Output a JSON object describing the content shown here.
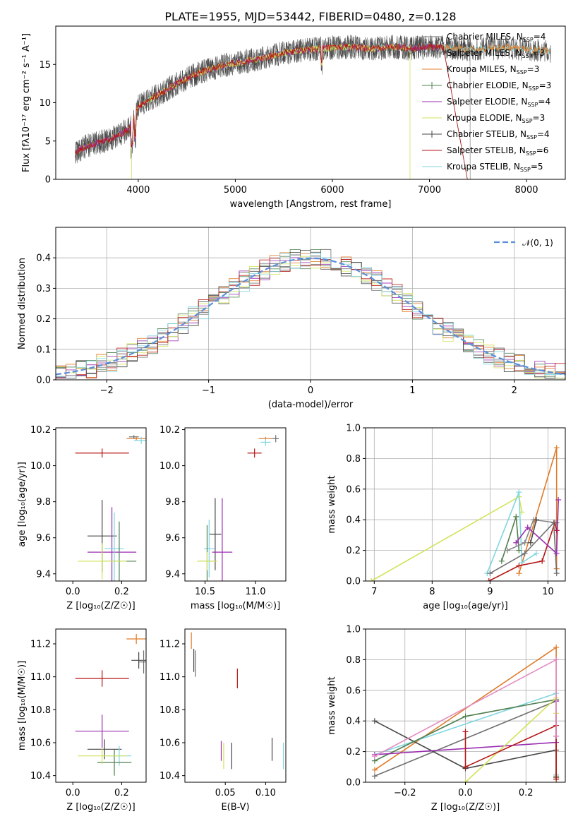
{
  "title": "PLATE=1955, MJD=53442, FIBERID=0480, z=0.128",
  "series_colors": [
    "#6f6f6f",
    "#888888",
    "#e07b28",
    "#4f7f4f",
    "#9b2fb0",
    "#d2e35a",
    "#474747",
    "#b51515",
    "#7fd6e0"
  ],
  "chart_data": [
    {
      "id": "spectrum",
      "type": "line",
      "title": "PLATE=1955, MJD=53442, FIBERID=0480, z=0.128",
      "xlabel": "wavelength [Angstrom, rest frame]",
      "ylabel": "Flux [fλ10⁻¹⁷ erg cm⁻² s⁻¹ A⁻¹]",
      "xlim": [
        3150,
        8400
      ],
      "ylim": [
        0,
        20
      ],
      "xticks": [
        "4000",
        "5000",
        "6000",
        "7000",
        "8000"
      ],
      "yticks": [
        "0",
        "5",
        "10",
        "15"
      ],
      "grid": false,
      "legend": "top-right",
      "legend_entries": [
        {
          "model": "Chabrier MILES",
          "n": "4"
        },
        {
          "model": "Salpeter MILES",
          "n": "3"
        },
        {
          "model": "Kroupa MILES",
          "n": "3"
        },
        {
          "model": "Chabrier ELODIE",
          "n": "3"
        },
        {
          "model": "Salpeter ELODIE",
          "n": "4"
        },
        {
          "model": "Kroupa ELODIE",
          "n": "3"
        },
        {
          "model": "Chabrier STELIB",
          "n": "4"
        },
        {
          "model": "Salpeter STELIB",
          "n": "6"
        },
        {
          "model": "Kroupa STELIB",
          "n": "5"
        }
      ],
      "n_label": "N",
      "n_sub": "SSP",
      "continuum": {
        "x": [
          3350,
          3500,
          3700,
          3900,
          4000,
          4200,
          4400,
          4600,
          4800,
          5000,
          5200,
          5400,
          5600,
          5800,
          6000,
          6200,
          6400,
          6600,
          6800,
          7000,
          7200,
          7400,
          7600,
          7800,
          8000,
          8200
        ],
        "y": [
          3.5,
          4.5,
          5.2,
          6.5,
          9.5,
          11.0,
          12.5,
          13.8,
          14.6,
          15.2,
          15.6,
          16.2,
          16.7,
          17.0,
          17.2,
          17.3,
          17.0,
          17.3,
          17.1,
          17.3,
          17.2,
          17.0,
          17.1,
          17.2,
          17.0,
          16.8
        ]
      },
      "cutoffs": {
        "Kroupa ELODIE": [
          3930,
          6800
        ],
        "Salpeter STELIB": [
          0,
          7420
        ],
        "Chabrier MILES": [
          0,
          7420
        ],
        "Salpeter MILES": [
          0,
          7420
        ]
      }
    },
    {
      "id": "residuals",
      "type": "histogram",
      "xlabel": "(data-model)/error",
      "ylabel": "Normed distribution",
      "xlim": [
        -2.5,
        2.5
      ],
      "ylim": [
        0,
        0.5
      ],
      "xticks": [
        "−2",
        "−1",
        "0",
        "1",
        "2"
      ],
      "yticks": [
        "0.0",
        "0.1",
        "0.2",
        "0.3",
        "0.4"
      ],
      "grid": true,
      "legend": "top-right",
      "reference_label": "𝒩(0, 1)",
      "bin_width": 0.1
    },
    {
      "id": "age-vs-Z",
      "type": "scatter",
      "xlabel": "Z [log₁₀(Z/Z☉)]",
      "ylabel": "age  [log₁₀(age/yr)]",
      "xlim": [
        -0.07,
        0.3
      ],
      "ylim": [
        9.36,
        10.21
      ],
      "xticks": [
        "0.0",
        "0.2"
      ],
      "yticks": [
        "9.4",
        "9.6",
        "9.8",
        "10.0",
        "10.2"
      ],
      "points": [
        {
          "x": 0.12,
          "y": 10.07,
          "xe": 0.11,
          "ye": 0.025,
          "c": 7
        },
        {
          "x": 0.26,
          "y": 10.15,
          "xe": 0.04,
          "ye": 0.01,
          "c": 2
        },
        {
          "x": 0.28,
          "y": 10.14,
          "xe": 0.03,
          "ye": 0.02,
          "c": 8
        },
        {
          "x": 0.25,
          "y": 10.16,
          "xe": 0.02,
          "ye": 0.01,
          "c": 0
        },
        {
          "x": 0.12,
          "y": 9.61,
          "xe": 0.06,
          "ye": 0.2,
          "c": 6
        },
        {
          "x": 0.16,
          "y": 9.52,
          "xe": 0.1,
          "ye": 0.25,
          "c": 4
        },
        {
          "x": 0.17,
          "y": 9.54,
          "xe": 0.04,
          "ye": 0.2,
          "c": 8
        },
        {
          "x": 0.19,
          "y": 9.47,
          "xe": 0.07,
          "ye": 0.22,
          "c": 3
        },
        {
          "x": 0.12,
          "y": 9.47,
          "xe": 0.1,
          "ye": 0.1,
          "c": 5
        }
      ]
    },
    {
      "id": "age-vs-mass",
      "type": "scatter",
      "xlabel": "mass [log₁₀(M/M☉)]",
      "ylabel": "",
      "xlim": [
        10.3,
        11.3
      ],
      "ylim": [
        9.36,
        10.21
      ],
      "xticks": [
        "10.5",
        "11.0"
      ],
      "yticks": [
        "9.4",
        "9.6",
        "9.8",
        "10.0",
        "10.2"
      ],
      "points": [
        {
          "x": 10.99,
          "y": 10.07,
          "xe": 0.07,
          "ye": 0.025,
          "c": 7
        },
        {
          "x": 11.1,
          "y": 10.15,
          "xe": 0.07,
          "ye": 0.01,
          "c": 2
        },
        {
          "x": 11.1,
          "y": 10.13,
          "xe": 0.05,
          "ye": 0.02,
          "c": 8
        },
        {
          "x": 11.2,
          "y": 10.15,
          "xe": 0.03,
          "ye": 0.02,
          "c": 0
        },
        {
          "x": 10.6,
          "y": 9.62,
          "xe": 0.06,
          "ye": 0.2,
          "c": 6
        },
        {
          "x": 10.67,
          "y": 9.52,
          "xe": 0.1,
          "ye": 0.3,
          "c": 4
        },
        {
          "x": 10.54,
          "y": 9.54,
          "xe": 0.05,
          "ye": 0.16,
          "c": 8
        },
        {
          "x": 10.52,
          "y": 9.47,
          "xe": 0.08,
          "ye": 0.2,
          "c": 3
        },
        {
          "x": 10.52,
          "y": 9.47,
          "xe": 0.1,
          "ye": 0.05,
          "c": 5
        }
      ]
    },
    {
      "id": "weight-vs-age",
      "type": "line",
      "xlabel": "age  [log₁₀(age/yr)]",
      "ylabel": "mass weight",
      "xlim": [
        6.85,
        10.3
      ],
      "ylim": [
        0,
        1
      ],
      "xticks": [
        "7",
        "8",
        "9",
        "10"
      ],
      "yticks": [
        "0.0",
        "0.2",
        "0.4",
        "0.6",
        "0.8",
        "1.0"
      ],
      "grid": true,
      "series": [
        {
          "c": 2,
          "x": [
            9.5,
            10.15,
            10.15
          ],
          "y": [
            0.05,
            0.87,
            0.08
          ]
        },
        {
          "c": 5,
          "x": [
            6.95,
            9.5,
            9.55
          ],
          "y": [
            0.0,
            0.55,
            0.45
          ]
        },
        {
          "c": 8,
          "x": [
            8.95,
            9.5,
            9.55,
            9.8
          ],
          "y": [
            0.05,
            0.58,
            0.12,
            0.18
          ]
        },
        {
          "c": 3,
          "x": [
            9.2,
            9.45,
            9.5
          ],
          "y": [
            0.13,
            0.42,
            0.2
          ]
        },
        {
          "c": 1,
          "x": [
            9.3,
            9.6,
            9.75,
            10.15
          ],
          "y": [
            0.2,
            0.25,
            0.4,
            0.38
          ]
        },
        {
          "c": 7,
          "x": [
            8.98,
            9.5,
            9.9,
            10.12,
            10.15
          ],
          "y": [
            0.0,
            0.1,
            0.13,
            0.38,
            0.33
          ]
        },
        {
          "c": 0,
          "x": [
            9.0,
            9.6,
            10.1,
            10.15
          ],
          "y": [
            0.05,
            0.18,
            0.38,
            0.05
          ]
        },
        {
          "c": 4,
          "x": [
            9.45,
            9.65,
            10.15,
            10.18
          ],
          "y": [
            0.25,
            0.35,
            0.18,
            0.53
          ]
        },
        {
          "c": 6,
          "x": [
            9.7,
            9.8
          ],
          "y": [
            0.25,
            0.4
          ]
        }
      ]
    },
    {
      "id": "mass-vs-Z",
      "type": "scatter",
      "xlabel": "Z [log₁₀(Z/Z☉)]",
      "ylabel": "mass [log₁₀(M/M☉)]",
      "xlim": [
        -0.07,
        0.3
      ],
      "ylim": [
        10.36,
        11.29
      ],
      "xticks": [
        "0.0",
        "0.2"
      ],
      "yticks": [
        "10.4",
        "10.6",
        "10.8",
        "11.0",
        "11.2"
      ],
      "points": [
        {
          "x": 0.12,
          "y": 10.99,
          "xe": 0.11,
          "ye": 0.05,
          "c": 7
        },
        {
          "x": 0.26,
          "y": 11.23,
          "xe": 0.04,
          "ye": 0.03,
          "c": 2
        },
        {
          "x": 0.27,
          "y": 11.1,
          "xe": 0.03,
          "ye": 0.05,
          "c": 6
        },
        {
          "x": 0.29,
          "y": 11.09,
          "xe": 0.02,
          "ye": 0.07,
          "c": 0
        },
        {
          "x": 0.13,
          "y": 10.56,
          "xe": 0.07,
          "ye": 0.06,
          "c": 6
        },
        {
          "x": 0.12,
          "y": 10.67,
          "xe": 0.11,
          "ye": 0.1,
          "c": 4
        },
        {
          "x": 0.19,
          "y": 10.52,
          "xe": 0.05,
          "ye": 0.06,
          "c": 8
        },
        {
          "x": 0.17,
          "y": 10.48,
          "xe": 0.07,
          "ye": 0.08,
          "c": 3
        },
        {
          "x": 0.12,
          "y": 10.52,
          "xe": 0.1,
          "ye": 0.05,
          "c": 5
        }
      ]
    },
    {
      "id": "mass-vs-ebv",
      "type": "scatter",
      "xlabel": "E(B-V)",
      "ylabel": "",
      "xlim": [
        0.0,
        0.125
      ],
      "ylim": [
        10.36,
        11.29
      ],
      "xticks": [
        "0.05",
        "0.10"
      ],
      "yticks": [
        "10.4",
        "10.6",
        "10.8",
        "11.0",
        "11.2"
      ],
      "points": [
        {
          "x": 0.065,
          "y": 10.99,
          "xe": 0,
          "ye": 0.06,
          "c": 7
        },
        {
          "x": 0.008,
          "y": 11.22,
          "xe": 0,
          "ye": 0.05,
          "c": 2
        },
        {
          "x": 0.011,
          "y": 11.1,
          "xe": 0,
          "ye": 0.07,
          "c": 6
        },
        {
          "x": 0.013,
          "y": 11.08,
          "xe": 0,
          "ye": 0.08,
          "c": 0
        },
        {
          "x": 0.045,
          "y": 10.55,
          "xe": 0,
          "ye": 0.06,
          "c": 4
        },
        {
          "x": 0.048,
          "y": 10.52,
          "xe": 0,
          "ye": 0.08,
          "c": 5
        },
        {
          "x": 0.058,
          "y": 10.52,
          "xe": 0,
          "ye": 0.08,
          "c": 6
        },
        {
          "x": 0.108,
          "y": 10.56,
          "xe": 0,
          "ye": 0.07,
          "c": 6
        },
        {
          "x": 0.122,
          "y": 10.52,
          "xe": 0,
          "ye": 0.08,
          "c": 8
        }
      ]
    },
    {
      "id": "weight-vs-Z",
      "type": "line",
      "xlabel": "Z [log₁₀(Z/Z☉)]",
      "ylabel": "mass weight",
      "xlim": [
        -0.33,
        0.33
      ],
      "ylim": [
        0,
        1
      ],
      "xticks": [
        "−0.2",
        "0.0",
        "0.2"
      ],
      "yticks": [
        "0.0",
        "0.2",
        "0.4",
        "0.6",
        "0.8",
        "1.0"
      ],
      "grid": true,
      "series": [
        {
          "c": 2,
          "x": [
            -0.3,
            0.3,
            0.3
          ],
          "y": [
            0.08,
            0.88,
            0.03
          ]
        },
        {
          "c": 8,
          "x": [
            -0.3,
            0.3,
            0.3
          ],
          "y": [
            0.18,
            0.58,
            0.05
          ]
        },
        {
          "c": 0,
          "x": [
            -0.3,
            0.3,
            0.3
          ],
          "y": [
            0.04,
            0.53,
            0.03
          ]
        },
        {
          "c": 6,
          "x": [
            -0.3,
            0.0,
            0.3,
            0.3
          ],
          "y": [
            0.4,
            0.09,
            0.21,
            0.3
          ]
        },
        {
          "c": 3,
          "x": [
            -0.3,
            0.0,
            0.3,
            0.3
          ],
          "y": [
            0.14,
            0.43,
            0.54,
            0.04
          ]
        },
        {
          "c": 4,
          "x": [
            -0.3,
            0.3,
            0.3
          ],
          "y": [
            0.18,
            0.26,
            0.53
          ]
        },
        {
          "c": 5,
          "x": [
            0.0,
            0.3,
            0.3
          ],
          "y": [
            0.0,
            0.55,
            0.45
          ]
        },
        {
          "c": 7,
          "x": [
            0.0,
            0.0,
            0.3,
            0.3
          ],
          "y": [
            0.33,
            0.1,
            0.37,
            0.02
          ]
        },
        {
          "c": 2,
          "x": [
            -0.3,
            0.3,
            0.3
          ],
          "y": [
            0.17,
            0.8,
            0.3
          ],
          "color": "#e38ac0"
        }
      ]
    }
  ]
}
